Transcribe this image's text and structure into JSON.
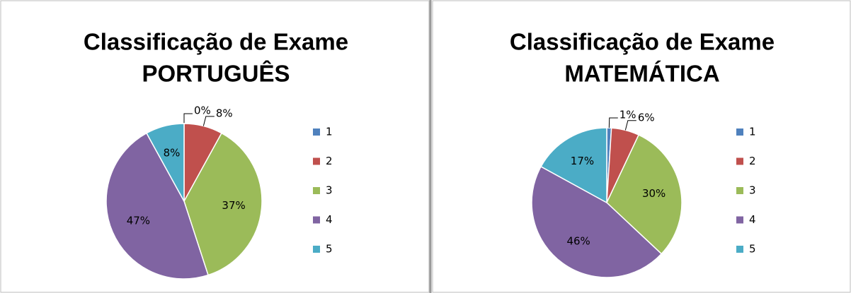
{
  "chart_data": [
    {
      "type": "pie",
      "title": "Classificação de Exame",
      "subtitle": "PORTUGUÊS",
      "categories": [
        "1",
        "2",
        "3",
        "4",
        "5"
      ],
      "values": [
        0,
        8,
        37,
        47,
        8
      ],
      "value_labels": [
        "0%",
        "8%",
        "37%",
        "47%",
        "8%"
      ],
      "colors": [
        "#4f81bd",
        "#c0504d",
        "#9bbb59",
        "#8064a2",
        "#4bacc6"
      ],
      "legend": "right"
    },
    {
      "type": "pie",
      "title": "Classificação de Exame",
      "subtitle": "MATEMÁTICA",
      "categories": [
        "1",
        "2",
        "3",
        "4",
        "5"
      ],
      "values": [
        1,
        6,
        30,
        46,
        17
      ],
      "value_labels": [
        "1%",
        "6%",
        "30%",
        "46%",
        "17%"
      ],
      "colors": [
        "#4f81bd",
        "#c0504d",
        "#9bbb59",
        "#8064a2",
        "#4bacc6"
      ],
      "legend": "right"
    }
  ]
}
